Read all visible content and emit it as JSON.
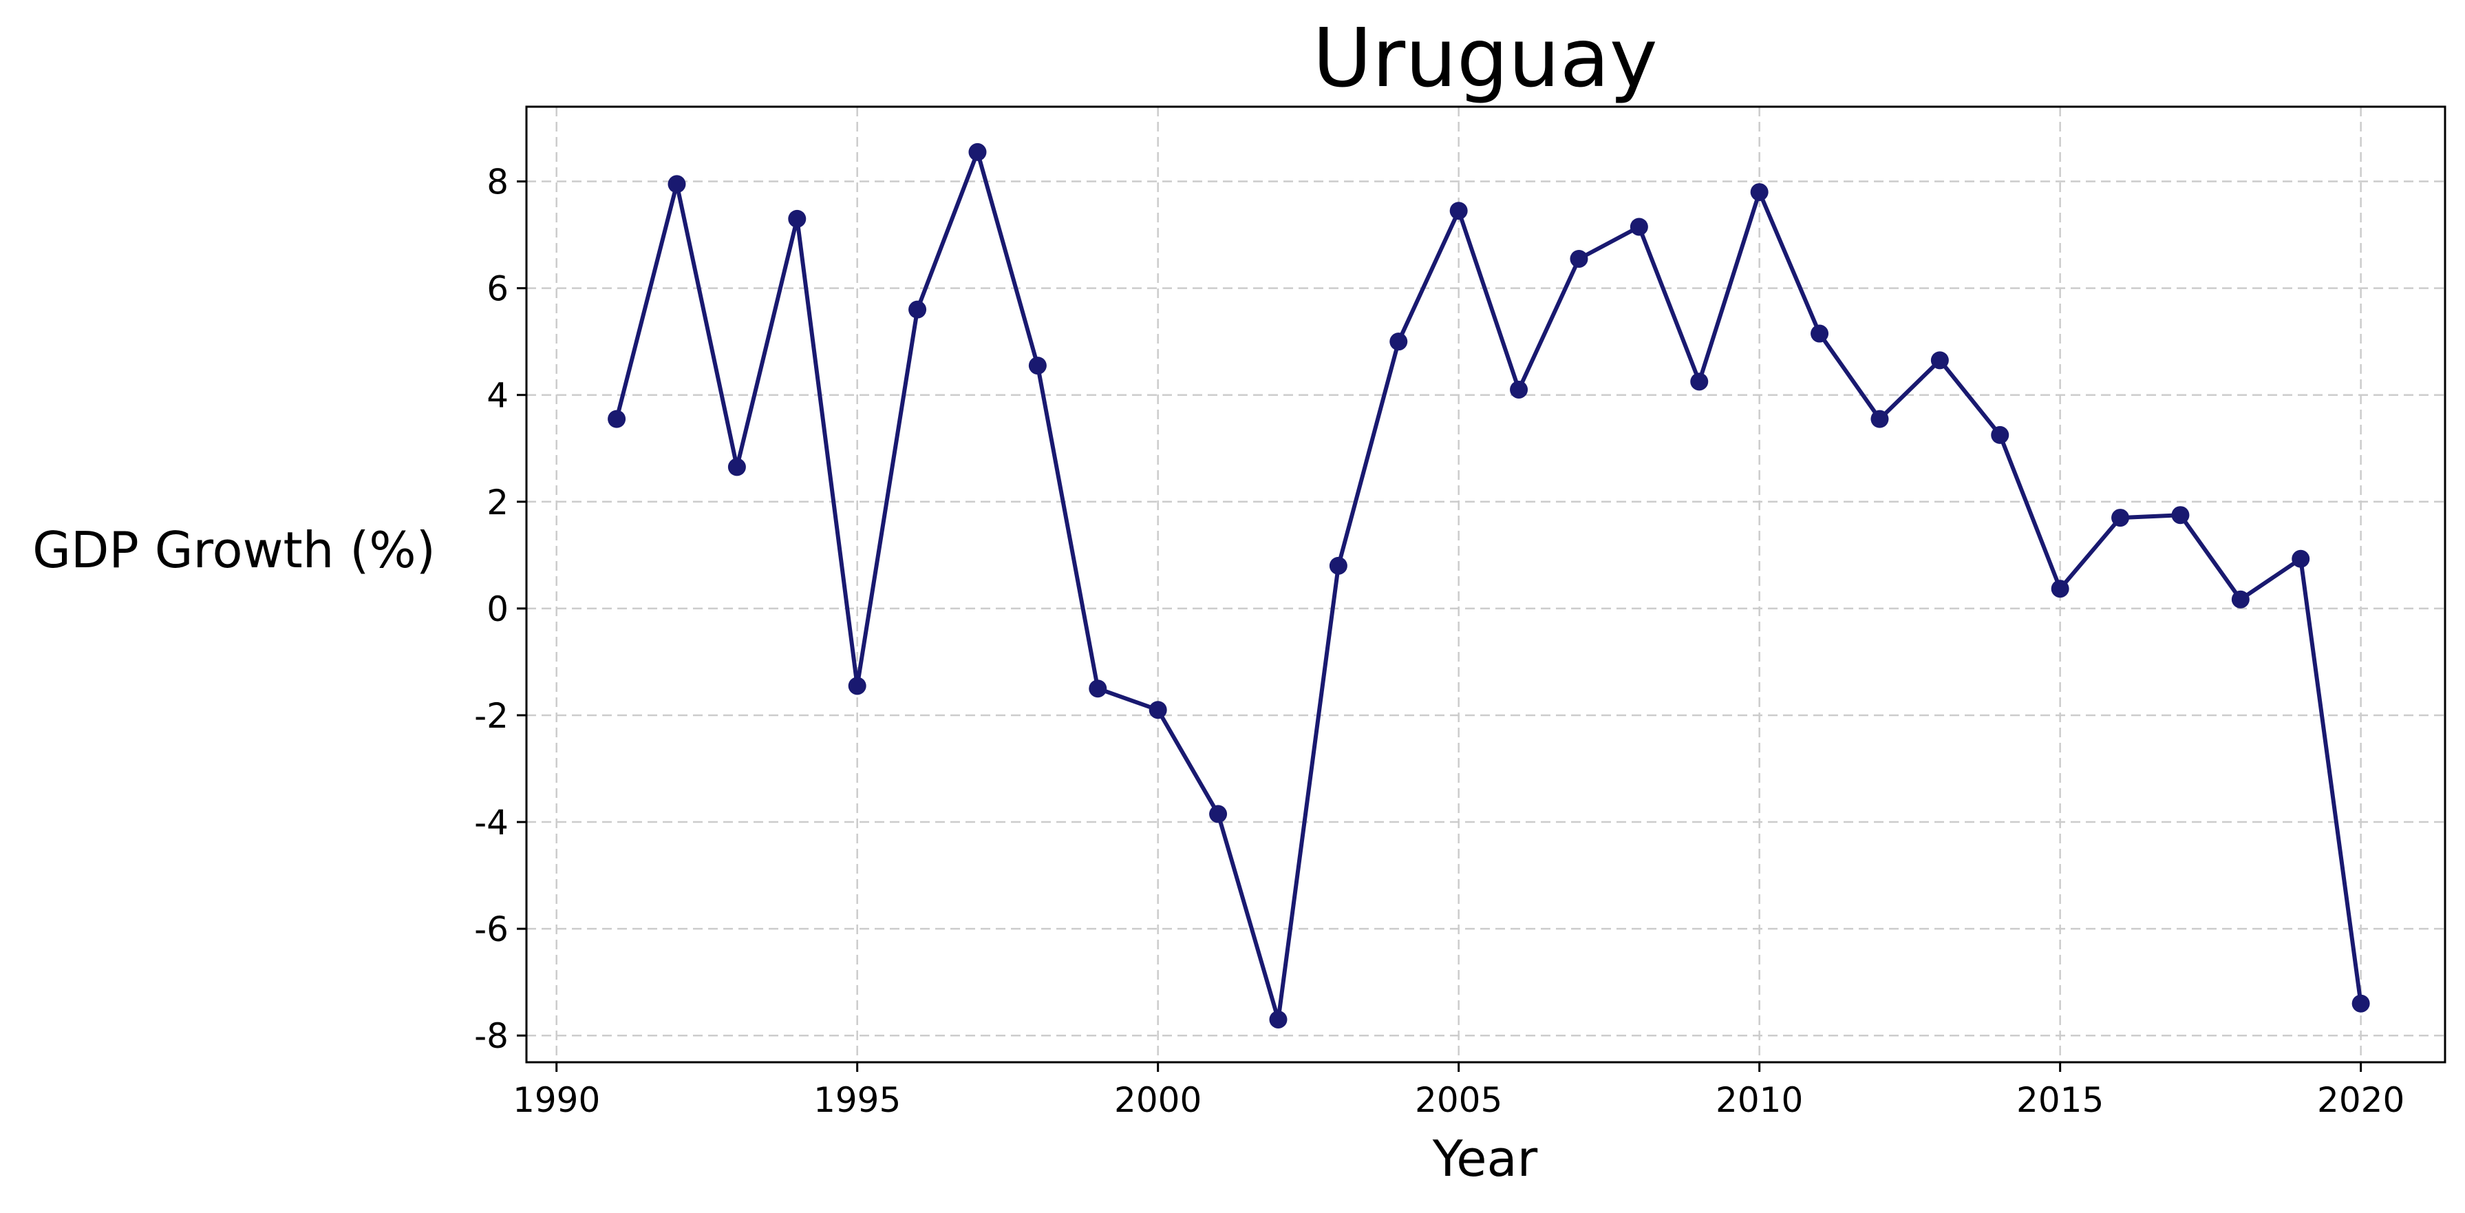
{
  "chart_data": {
    "type": "line",
    "title": "Uruguay",
    "xlabel": "Year",
    "ylabel": "GDP Growth (%)",
    "xlim": [
      1989.5,
      2021.4
    ],
    "ylim": [
      -8.5,
      9.4
    ],
    "xticks": [
      1990,
      1995,
      2000,
      2005,
      2010,
      2015,
      2020
    ],
    "yticks": [
      -8,
      -6,
      -4,
      -2,
      0,
      2,
      4,
      6,
      8
    ],
    "grid": true,
    "legend": "none",
    "series": [
      {
        "color": "#191970",
        "marker": "circle",
        "x": [
          1991,
          1992,
          1993,
          1994,
          1995,
          1996,
          1997,
          1998,
          1999,
          2000,
          2001,
          2002,
          2003,
          2004,
          2005,
          2006,
          2007,
          2008,
          2009,
          2010,
          2011,
          2012,
          2013,
          2014,
          2015,
          2016,
          2017,
          2018,
          2019,
          2020
        ],
        "y": [
          3.55,
          7.95,
          2.65,
          7.3,
          -1.45,
          5.6,
          8.55,
          4.55,
          -1.5,
          -1.9,
          -3.85,
          -7.7,
          0.8,
          5.0,
          7.45,
          4.1,
          6.55,
          7.15,
          4.25,
          7.8,
          5.15,
          3.55,
          4.65,
          3.25,
          0.37,
          1.7,
          1.75,
          0.17,
          0.93,
          -7.4
        ]
      }
    ]
  }
}
